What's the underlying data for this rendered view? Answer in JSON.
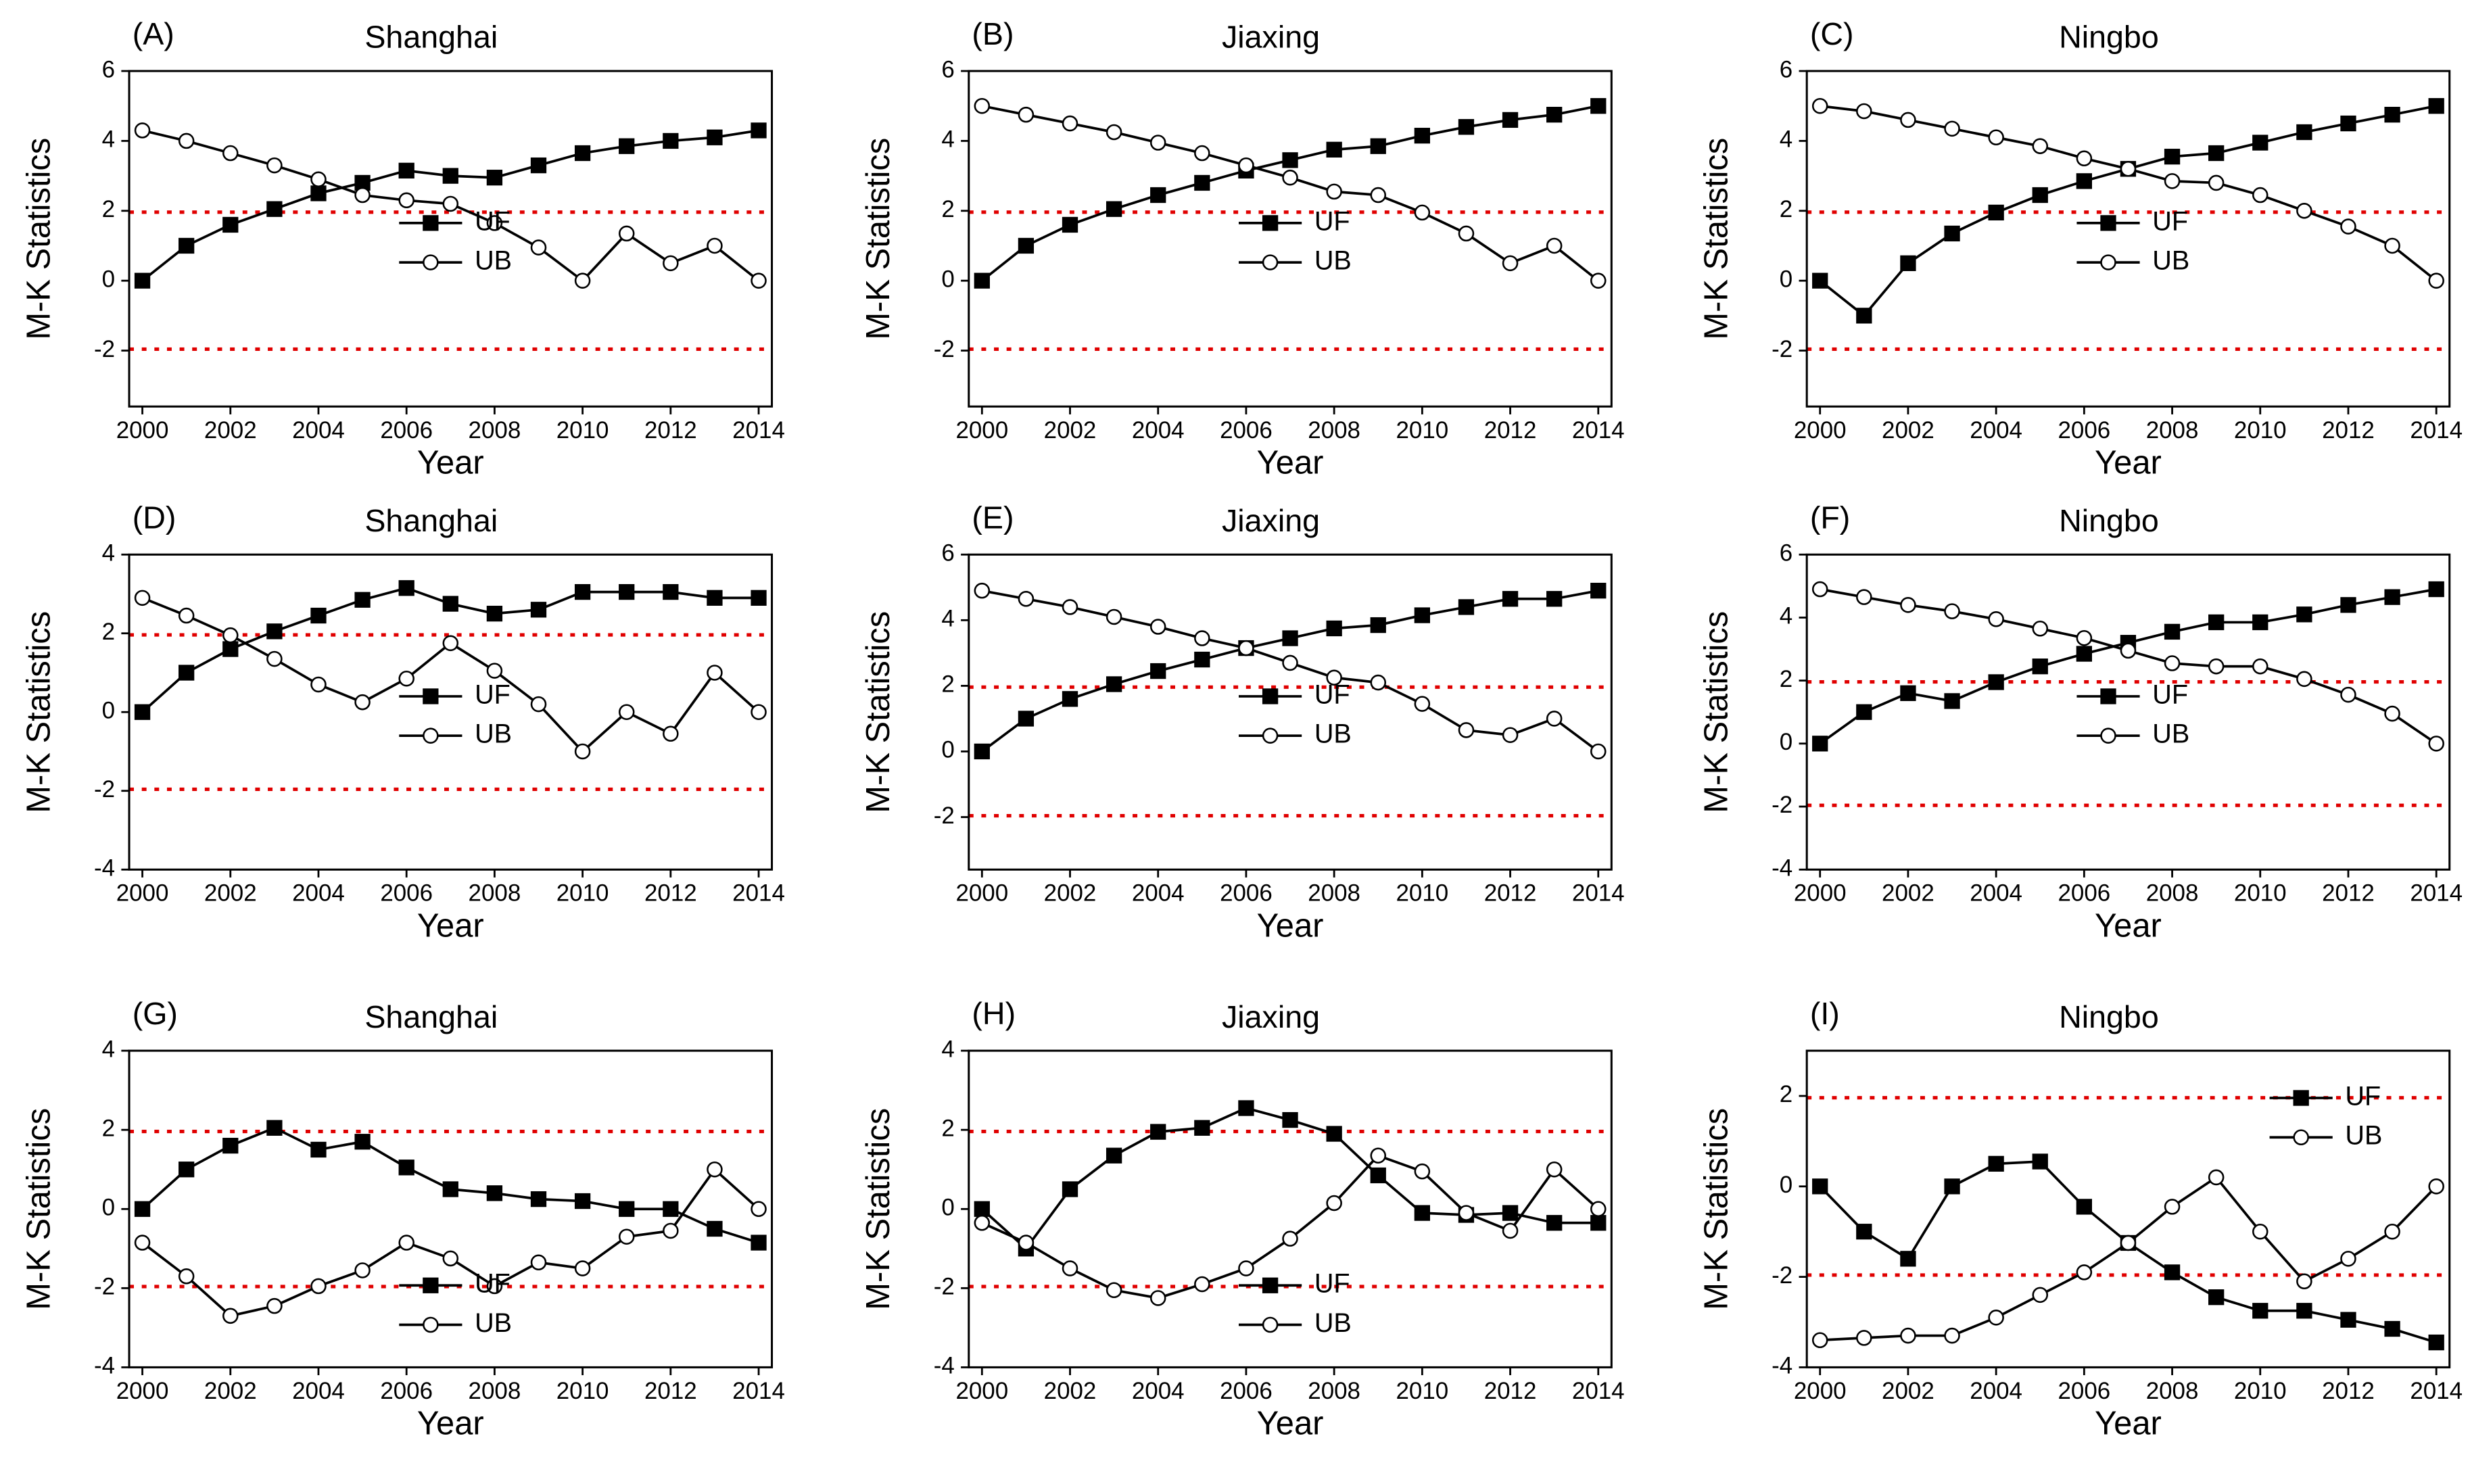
{
  "chart_data": [
    {
      "type": "line",
      "label": "(A)",
      "title": "Shanghai",
      "x_label": "Year",
      "y_label": "M-K Statistics",
      "x": [
        2000,
        2001,
        2002,
        2003,
        2004,
        2005,
        2006,
        2007,
        2008,
        2009,
        2010,
        2011,
        2012,
        2013,
        2014
      ],
      "xlim": [
        1999.7,
        2014.3
      ],
      "xticks": [
        2000,
        2002,
        2004,
        2006,
        2008,
        2010,
        2012,
        2014
      ],
      "ylim": [
        -3.6,
        6
      ],
      "yticks": [
        -2,
        0,
        2,
        4,
        6
      ],
      "legend": "center",
      "thresholds": [
        1.96,
        -1.96
      ],
      "threshold_color": "#e00000",
      "series": [
        {
          "name": "UF",
          "color": "#000000",
          "marker": "square",
          "values": [
            0,
            1.0,
            1.6,
            2.05,
            2.5,
            2.8,
            3.15,
            3.0,
            2.95,
            3.3,
            3.65,
            3.85,
            4.0,
            4.1,
            4.3
          ]
        },
        {
          "name": "UB",
          "color": "#000000",
          "marker": "circle",
          "values": [
            4.3,
            4.0,
            3.65,
            3.3,
            2.9,
            2.45,
            2.3,
            2.2,
            1.65,
            0.95,
            0.0,
            1.35,
            0.5,
            1.0,
            0.0
          ]
        }
      ]
    },
    {
      "type": "line",
      "label": "(B)",
      "title": "Jiaxing",
      "x_label": "Year",
      "y_label": "M-K Statistics",
      "x": [
        2000,
        2001,
        2002,
        2003,
        2004,
        2005,
        2006,
        2007,
        2008,
        2009,
        2010,
        2011,
        2012,
        2013,
        2014
      ],
      "xlim": [
        1999.7,
        2014.3
      ],
      "xticks": [
        2000,
        2002,
        2004,
        2006,
        2008,
        2010,
        2012,
        2014
      ],
      "ylim": [
        -3.6,
        6
      ],
      "yticks": [
        -2,
        0,
        2,
        4,
        6
      ],
      "legend": "center",
      "thresholds": [
        1.96,
        -1.96
      ],
      "threshold_color": "#e00000",
      "series": [
        {
          "name": "UF",
          "color": "#000000",
          "marker": "square",
          "values": [
            0,
            1.0,
            1.6,
            2.05,
            2.45,
            2.8,
            3.15,
            3.45,
            3.75,
            3.85,
            4.15,
            4.4,
            4.6,
            4.75,
            5.0
          ]
        },
        {
          "name": "UB",
          "color": "#000000",
          "marker": "circle",
          "values": [
            5.0,
            4.75,
            4.5,
            4.25,
            3.95,
            3.65,
            3.3,
            2.95,
            2.55,
            2.45,
            1.95,
            1.35,
            0.5,
            1.0,
            0.0
          ]
        }
      ]
    },
    {
      "type": "line",
      "label": "(C)",
      "title": "Ningbo",
      "x_label": "Year",
      "y_label": "M-K Statistics",
      "x": [
        2000,
        2001,
        2002,
        2003,
        2004,
        2005,
        2006,
        2007,
        2008,
        2009,
        2010,
        2011,
        2012,
        2013,
        2014
      ],
      "xlim": [
        1999.7,
        2014.3
      ],
      "xticks": [
        2000,
        2002,
        2004,
        2006,
        2008,
        2010,
        2012,
        2014
      ],
      "ylim": [
        -3.6,
        6
      ],
      "yticks": [
        -2,
        0,
        2,
        4,
        6
      ],
      "legend": "center",
      "thresholds": [
        1.96,
        -1.96
      ],
      "threshold_color": "#e00000",
      "series": [
        {
          "name": "UF",
          "color": "#000000",
          "marker": "square",
          "values": [
            0,
            -1.0,
            0.5,
            1.35,
            1.95,
            2.45,
            2.85,
            3.2,
            3.55,
            3.65,
            3.95,
            4.25,
            4.5,
            4.75,
            5.0
          ]
        },
        {
          "name": "UB",
          "color": "#000000",
          "marker": "circle",
          "values": [
            5.0,
            4.85,
            4.6,
            4.35,
            4.1,
            3.85,
            3.5,
            3.2,
            2.85,
            2.8,
            2.45,
            2.0,
            1.55,
            1.0,
            0.0
          ]
        }
      ]
    },
    {
      "type": "line",
      "label": "(D)",
      "title": "Shanghai",
      "x_label": "Year",
      "y_label": "M-K Statistics",
      "x": [
        2000,
        2001,
        2002,
        2003,
        2004,
        2005,
        2006,
        2007,
        2008,
        2009,
        2010,
        2011,
        2012,
        2013,
        2014
      ],
      "xlim": [
        1999.7,
        2014.3
      ],
      "xticks": [
        2000,
        2002,
        2004,
        2006,
        2008,
        2010,
        2012,
        2014
      ],
      "ylim": [
        -4,
        4
      ],
      "yticks": [
        -4,
        -2,
        0,
        2,
        4
      ],
      "legend": "center",
      "thresholds": [
        1.96,
        -1.96
      ],
      "threshold_color": "#e00000",
      "series": [
        {
          "name": "UF",
          "color": "#000000",
          "marker": "square",
          "values": [
            0,
            1.0,
            1.6,
            2.05,
            2.45,
            2.85,
            3.15,
            2.75,
            2.5,
            2.6,
            3.05,
            3.05,
            3.05,
            2.9,
            2.9
          ]
        },
        {
          "name": "UB",
          "color": "#000000",
          "marker": "circle",
          "values": [
            2.9,
            2.45,
            1.95,
            1.35,
            0.7,
            0.25,
            0.85,
            1.75,
            1.05,
            0.2,
            -1.0,
            0.0,
            -0.55,
            1.0,
            0.0
          ]
        }
      ]
    },
    {
      "type": "line",
      "label": "(E)",
      "title": "Jiaxing",
      "x_label": "Year",
      "y_label": "M-K Statistics",
      "x": [
        2000,
        2001,
        2002,
        2003,
        2004,
        2005,
        2006,
        2007,
        2008,
        2009,
        2010,
        2011,
        2012,
        2013,
        2014
      ],
      "xlim": [
        1999.7,
        2014.3
      ],
      "xticks": [
        2000,
        2002,
        2004,
        2006,
        2008,
        2010,
        2012,
        2014
      ],
      "ylim": [
        -3.6,
        6
      ],
      "yticks": [
        -2,
        0,
        2,
        4,
        6
      ],
      "legend": "center",
      "thresholds": [
        1.96,
        -1.96
      ],
      "threshold_color": "#e00000",
      "series": [
        {
          "name": "UF",
          "color": "#000000",
          "marker": "square",
          "values": [
            0,
            1.0,
            1.6,
            2.05,
            2.45,
            2.8,
            3.15,
            3.45,
            3.75,
            3.85,
            4.15,
            4.4,
            4.65,
            4.65,
            4.9
          ]
        },
        {
          "name": "UB",
          "color": "#000000",
          "marker": "circle",
          "values": [
            4.9,
            4.65,
            4.4,
            4.1,
            3.8,
            3.45,
            3.15,
            2.7,
            2.25,
            2.1,
            1.45,
            0.65,
            0.5,
            1.0,
            0.0
          ]
        }
      ]
    },
    {
      "type": "line",
      "label": "(F)",
      "title": "Ningbo",
      "x_label": "Year",
      "y_label": "M-K Statistics",
      "x": [
        2000,
        2001,
        2002,
        2003,
        2004,
        2005,
        2006,
        2007,
        2008,
        2009,
        2010,
        2011,
        2012,
        2013,
        2014
      ],
      "xlim": [
        1999.7,
        2014.3
      ],
      "xticks": [
        2000,
        2002,
        2004,
        2006,
        2008,
        2010,
        2012,
        2014
      ],
      "ylim": [
        -4,
        6
      ],
      "yticks": [
        -4,
        -2,
        0,
        2,
        4,
        6
      ],
      "legend": "center",
      "thresholds": [
        1.96,
        -1.96
      ],
      "threshold_color": "#e00000",
      "series": [
        {
          "name": "UF",
          "color": "#000000",
          "marker": "square",
          "values": [
            0,
            1.0,
            1.6,
            1.35,
            1.95,
            2.45,
            2.85,
            3.2,
            3.55,
            3.85,
            3.85,
            4.1,
            4.4,
            4.65,
            4.9
          ]
        },
        {
          "name": "UB",
          "color": "#000000",
          "marker": "circle",
          "values": [
            4.9,
            4.65,
            4.4,
            4.2,
            3.95,
            3.65,
            3.35,
            2.95,
            2.55,
            2.45,
            2.45,
            2.05,
            1.55,
            0.95,
            0.0
          ]
        }
      ]
    },
    {
      "type": "line",
      "label": "(G)",
      "title": "Shanghai",
      "x_label": "Year",
      "y_label": "M-K Statistics",
      "x": [
        2000,
        2001,
        2002,
        2003,
        2004,
        2005,
        2006,
        2007,
        2008,
        2009,
        2010,
        2011,
        2012,
        2013,
        2014
      ],
      "xlim": [
        1999.7,
        2014.3
      ],
      "xticks": [
        2000,
        2002,
        2004,
        2006,
        2008,
        2010,
        2012,
        2014
      ],
      "ylim": [
        -4,
        4
      ],
      "yticks": [
        -4,
        -2,
        0,
        2,
        4
      ],
      "legend": "lower center",
      "thresholds": [
        1.96,
        -1.96
      ],
      "threshold_color": "#e00000",
      "series": [
        {
          "name": "UF",
          "color": "#000000",
          "marker": "square",
          "values": [
            0,
            1.0,
            1.6,
            2.05,
            1.5,
            1.7,
            1.05,
            0.5,
            0.4,
            0.25,
            0.2,
            0.0,
            0.0,
            -0.5,
            -0.85
          ]
        },
        {
          "name": "UB",
          "color": "#000000",
          "marker": "circle",
          "values": [
            -0.85,
            -1.7,
            -2.7,
            -2.45,
            -1.95,
            -1.55,
            -0.85,
            -1.25,
            -1.95,
            -1.35,
            -1.5,
            -0.7,
            -0.55,
            1.0,
            0.0
          ]
        }
      ]
    },
    {
      "type": "line",
      "label": "(H)",
      "title": "Jiaxing",
      "x_label": "Year",
      "y_label": "M-K Statistics",
      "x": [
        2000,
        2001,
        2002,
        2003,
        2004,
        2005,
        2006,
        2007,
        2008,
        2009,
        2010,
        2011,
        2012,
        2013,
        2014
      ],
      "xlim": [
        1999.7,
        2014.3
      ],
      "xticks": [
        2000,
        2002,
        2004,
        2006,
        2008,
        2010,
        2012,
        2014
      ],
      "ylim": [
        -4,
        4
      ],
      "yticks": [
        -4,
        -2,
        0,
        2,
        4
      ],
      "legend": "lower center",
      "thresholds": [
        1.96,
        -1.96
      ],
      "threshold_color": "#e00000",
      "series": [
        {
          "name": "UF",
          "color": "#000000",
          "marker": "square",
          "values": [
            0,
            -1.0,
            0.5,
            1.35,
            1.95,
            2.05,
            2.55,
            2.25,
            1.9,
            0.85,
            -0.1,
            -0.15,
            -0.1,
            -0.35,
            -0.35
          ]
        },
        {
          "name": "UB",
          "color": "#000000",
          "marker": "circle",
          "values": [
            -0.35,
            -0.85,
            -1.5,
            -2.05,
            -2.25,
            -1.9,
            -1.5,
            -0.75,
            0.15,
            1.35,
            0.95,
            -0.1,
            -0.55,
            1.0,
            0.0
          ]
        }
      ]
    },
    {
      "type": "line",
      "label": "(I)",
      "title": "Ningbo",
      "x_label": "Year",
      "y_label": "M-K Statistics",
      "x": [
        2000,
        2001,
        2002,
        2003,
        2004,
        2005,
        2006,
        2007,
        2008,
        2009,
        2010,
        2011,
        2012,
        2013,
        2014
      ],
      "xlim": [
        1999.7,
        2014.3
      ],
      "xticks": [
        2000,
        2002,
        2004,
        2006,
        2008,
        2010,
        2012,
        2014
      ],
      "ylim": [
        -4,
        3
      ],
      "yticks": [
        -4,
        -2,
        0,
        2
      ],
      "legend": "upper right",
      "thresholds": [
        1.96,
        -1.96
      ],
      "threshold_color": "#e00000",
      "series": [
        {
          "name": "UF",
          "color": "#000000",
          "marker": "square",
          "values": [
            0,
            -1.0,
            -1.6,
            0.0,
            0.5,
            0.55,
            -0.45,
            -1.25,
            -1.9,
            -2.45,
            -2.75,
            -2.75,
            -2.95,
            -3.15,
            -3.45
          ]
        },
        {
          "name": "UB",
          "color": "#000000",
          "marker": "circle",
          "values": [
            -3.4,
            -3.35,
            -3.3,
            -3.3,
            -2.9,
            -2.4,
            -1.9,
            -1.25,
            -0.45,
            0.2,
            -1.0,
            -2.1,
            -1.6,
            -1.0,
            0.0
          ]
        }
      ]
    }
  ]
}
